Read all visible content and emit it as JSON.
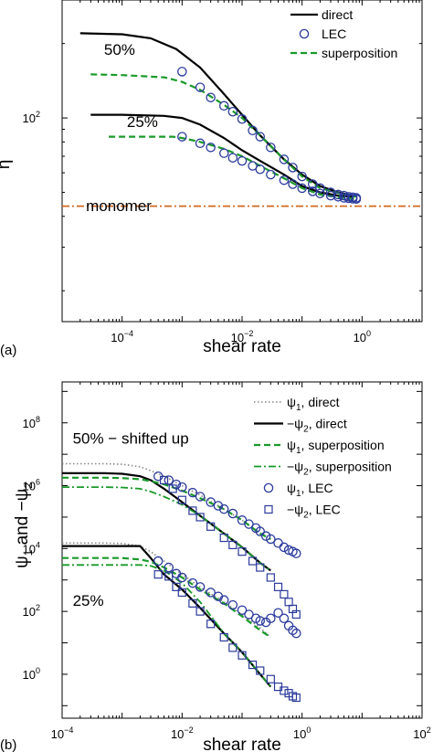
{
  "chart_data": [
    {
      "panel_label": "(a)",
      "type": "line",
      "xscale": "log",
      "yscale": "log",
      "xlim": [
        1e-05,
        10
      ],
      "ylim": [
        15,
        300
      ],
      "xlabel": "shear rate",
      "ylabel": "η",
      "x_ticks": [
        {
          "value": 0.0001,
          "base": "10",
          "exp": "−4"
        },
        {
          "value": 0.01,
          "base": "10",
          "exp": "−2"
        },
        {
          "value": 1,
          "base": "10",
          "exp": "0"
        }
      ],
      "y_ticks": [
        {
          "value": 100,
          "base": "10",
          "exp": "2"
        }
      ],
      "legend": {
        "placement": "top-right",
        "entries": [
          {
            "label": "direct",
            "style": "solid",
            "color": "#000000"
          },
          {
            "label": "LEC",
            "style": "circle",
            "color": "#2b3a9c"
          },
          {
            "label": "superposition",
            "style": "dashed",
            "color": "#1a9a2a"
          }
        ]
      },
      "annotations": [
        {
          "text": "50%",
          "x": 5e-05,
          "y": 180
        },
        {
          "text": "25%",
          "x": 0.00012,
          "y": 92
        },
        {
          "text": "monomer",
          "x": 2.5e-05,
          "y": 42
        }
      ],
      "series": [
        {
          "style": "solid",
          "color": "#000000",
          "x": [
            2e-05,
            0.0001,
            0.0003,
            0.0008,
            0.002,
            0.005,
            0.01,
            0.02,
            0.05,
            0.1,
            0.2,
            0.4,
            0.7
          ],
          "y": [
            220,
            218,
            210,
            190,
            160,
            125,
            103,
            85,
            68,
            59,
            53,
            50,
            48.5
          ]
        },
        {
          "style": "dashed",
          "color": "#1a9a2a",
          "x": [
            3e-05,
            0.0001,
            0.0005,
            0.001,
            0.002,
            0.005,
            0.01,
            0.02,
            0.05,
            0.1,
            0.2,
            0.5,
            0.8
          ],
          "y": [
            150,
            149,
            146,
            140,
            130,
            113,
            100,
            85,
            68,
            58,
            52,
            49,
            48
          ]
        },
        {
          "style": "solid",
          "color": "#000000",
          "x": [
            3e-05,
            0.0001,
            0.0005,
            0.001,
            0.002,
            0.005,
            0.01,
            0.02,
            0.05,
            0.1,
            0.2,
            0.4,
            0.7
          ],
          "y": [
            103,
            103,
            102,
            100,
            94,
            83,
            74,
            67,
            59,
            53,
            50,
            48.5,
            48
          ]
        },
        {
          "style": "dashed",
          "color": "#1a9a2a",
          "x": [
            6e-05,
            0.0003,
            0.0007,
            0.001,
            0.002,
            0.005,
            0.01,
            0.02,
            0.05,
            0.1,
            0.2,
            0.5,
            0.8
          ],
          "y": [
            84,
            84,
            84,
            83,
            80,
            75,
            70,
            64,
            57,
            52,
            49,
            47.5,
            47
          ]
        },
        {
          "style": "dashdot",
          "color": "#d2691e",
          "x": [
            1e-05,
            10
          ],
          "y": [
            44,
            44
          ]
        },
        {
          "style": "circle",
          "color": "#2b3a9c",
          "x": [
            0.001,
            0.002,
            0.003,
            0.005,
            0.007,
            0.01,
            0.015,
            0.02,
            0.03,
            0.05,
            0.07,
            0.1,
            0.15,
            0.2,
            0.3,
            0.4,
            0.5,
            0.6,
            0.7,
            0.8
          ],
          "y": [
            154,
            133,
            121,
            112,
            106,
            99,
            89,
            84,
            76,
            68,
            63,
            58,
            54,
            52,
            50,
            49,
            48.5,
            48,
            47.8,
            47.5
          ]
        },
        {
          "style": "circle",
          "color": "#2b3a9c",
          "x": [
            0.001,
            0.002,
            0.003,
            0.005,
            0.007,
            0.01,
            0.015,
            0.02,
            0.03,
            0.05,
            0.07,
            0.1,
            0.15,
            0.2,
            0.3,
            0.4,
            0.5,
            0.6,
            0.7,
            0.8
          ],
          "y": [
            84,
            79,
            76,
            72,
            69,
            67,
            64,
            62,
            59,
            56,
            54,
            52,
            50.5,
            49.5,
            48.5,
            48,
            47.5,
            47.3,
            47.1,
            47
          ]
        }
      ]
    },
    {
      "panel_label": "(b)",
      "type": "line",
      "xscale": "log",
      "yscale": "log",
      "xlim": [
        0.0001,
        100
      ],
      "ylim": [
        0.04,
        2000000000.0
      ],
      "xlabel": "shear rate",
      "ylabel_parts": [
        "ψ",
        "1",
        " and −ψ",
        "2"
      ],
      "x_ticks": [
        {
          "value": 0.0001,
          "base": "10",
          "exp": "−4"
        },
        {
          "value": 0.01,
          "base": "10",
          "exp": "−2"
        },
        {
          "value": 1,
          "base": "10",
          "exp": "0"
        },
        {
          "value": 100,
          "base": "10",
          "exp": "2"
        }
      ],
      "y_ticks": [
        {
          "value": 1,
          "base": "10",
          "exp": "0"
        },
        {
          "value": 100,
          "base": "10",
          "exp": "2"
        },
        {
          "value": 10000,
          "base": "10",
          "exp": "4"
        },
        {
          "value": 1000000,
          "base": "10",
          "exp": "6"
        },
        {
          "value": 100000000,
          "base": "10",
          "exp": "8"
        }
      ],
      "legend": {
        "placement": "top-right",
        "entries": [
          {
            "parts": [
              "ψ",
              "1",
              ", direct"
            ],
            "style": "dotted",
            "color": "#888888"
          },
          {
            "parts": [
              "−ψ",
              "2",
              ", direct"
            ],
            "style": "solid",
            "color": "#000000"
          },
          {
            "parts": [
              "ψ",
              "1",
              ", superposition"
            ],
            "style": "dashed",
            "color": "#1a9a2a"
          },
          {
            "parts": [
              "−ψ",
              "2",
              ", superposition"
            ],
            "style": "dashdot",
            "color": "#1a9a2a"
          },
          {
            "parts": [
              "ψ",
              "1",
              ", LEC"
            ],
            "style": "circle",
            "color": "#2b3a9c"
          },
          {
            "parts": [
              "−ψ",
              "2",
              ", LEC"
            ],
            "style": "square",
            "color": "#2b3a9c"
          }
        ]
      },
      "annotations": [
        {
          "text": "50% − shifted up",
          "x": 0.00015,
          "y": 22000000.0
        },
        {
          "text": "25%",
          "x": 0.00015,
          "y": 150
        }
      ],
      "series": [
        {
          "style": "dotted",
          "color": "#888888",
          "x": [
            0.0001,
            0.0005,
            0.001,
            0.002,
            0.003,
            0.005,
            0.01,
            0.02,
            0.05,
            0.1,
            0.2,
            0.3
          ],
          "y": [
            5000000.0,
            5000000.0,
            4800000.0,
            4000000.0,
            3000000.0,
            2000000.0,
            1000000.0,
            500000.0,
            180000.0,
            80000.0,
            30000.0,
            20000.0
          ]
        },
        {
          "style": "solid",
          "color": "#000000",
          "x": [
            0.0001,
            0.0005,
            0.001,
            0.002,
            0.003,
            0.005,
            0.01,
            0.02,
            0.05,
            0.1,
            0.2,
            0.3
          ],
          "y": [
            2500000.0,
            2500000.0,
            2400000.0,
            2000000.0,
            1500000.0,
            800000.0,
            300000.0,
            110000.0,
            30000.0,
            11000.0,
            3500.0,
            2000.0
          ]
        },
        {
          "style": "dashed",
          "color": "#1a9a2a",
          "x": [
            0.0001,
            0.0005,
            0.001,
            0.002,
            0.003,
            0.005,
            0.01,
            0.02,
            0.05,
            0.1,
            0.2,
            0.3
          ],
          "y": [
            1800000.0,
            1800000.0,
            1750000.0,
            1600000.0,
            1400000.0,
            1100000.0,
            700000.0,
            400000.0,
            180000.0,
            80000.0,
            30000.0,
            20000.0
          ]
        },
        {
          "style": "dashdot",
          "color": "#1a9a2a",
          "x": [
            0.0001,
            0.0005,
            0.001,
            0.002,
            0.003,
            0.005,
            0.01,
            0.02,
            0.05,
            0.1,
            0.2,
            0.3
          ],
          "y": [
            900000.0,
            900000.0,
            880000.0,
            800000.0,
            650000.0,
            450000.0,
            250000.0,
            110000.0,
            30000.0,
            11000.0,
            3500.0,
            2000.0
          ]
        },
        {
          "style": "dotted",
          "color": "#888888",
          "x": [
            0.0001,
            0.0005,
            0.001,
            0.002,
            0.003,
            0.005,
            0.01,
            0.02,
            0.05,
            0.1,
            0.2,
            0.3
          ],
          "y": [
            15000.0,
            15000.0,
            14500.0,
            12000.0,
            8000.0,
            4000.0,
            1500.0,
            600,
            200,
            80,
            30,
            15
          ]
        },
        {
          "style": "solid",
          "color": "#000000",
          "x": [
            0.0001,
            0.0005,
            0.001,
            0.002,
            0.003,
            0.005,
            0.01,
            0.02,
            0.05,
            0.1,
            0.2,
            0.3
          ],
          "y": [
            12000.0,
            12000.0,
            12000.0,
            12000.0,
            5000.0,
            1500.0,
            500,
            130,
            20,
            5,
            1,
            0.4
          ]
        },
        {
          "style": "dashed",
          "color": "#1a9a2a",
          "x": [
            0.0001,
            0.0005,
            0.001,
            0.002,
            0.003,
            0.005,
            0.01,
            0.02,
            0.05,
            0.1,
            0.2,
            0.3
          ],
          "y": [
            5000.0,
            5000.0,
            5000.0,
            4500.0,
            3800.0,
            2500.0,
            1200.0,
            500,
            180,
            70,
            25,
            15
          ]
        },
        {
          "style": "dashdot",
          "color": "#1a9a2a",
          "x": [
            0.0001,
            0.0005,
            0.001,
            0.002,
            0.003,
            0.005,
            0.01,
            0.02,
            0.05,
            0.1,
            0.2,
            0.3
          ],
          "y": [
            3000.0,
            3000.0,
            3000.0,
            3000.0,
            2800.0,
            2000.0,
            800,
            200,
            20,
            5,
            1,
            0.4
          ]
        },
        {
          "style": "circle",
          "color": "#2b3a9c",
          "x": [
            0.004,
            0.006,
            0.008,
            0.01,
            0.015,
            0.02,
            0.03,
            0.04,
            0.05,
            0.07,
            0.1,
            0.13,
            0.17,
            0.2,
            0.25,
            0.3,
            0.4,
            0.5,
            0.6,
            0.7,
            0.8
          ],
          "y": [
            2000000.0,
            1500000.0,
            1100000.0,
            900000.0,
            600000.0,
            450000.0,
            300000.0,
            230000.0,
            180000.0,
            130000.0,
            80000.0,
            60000.0,
            45000.0,
            35000.0,
            25000.0,
            20000.0,
            15000.0,
            11000.0,
            9000.0,
            8000.0,
            7000.0
          ]
        },
        {
          "style": "square",
          "color": "#2b3a9c",
          "x": [
            0.005,
            0.007,
            0.01,
            0.015,
            0.02,
            0.03,
            0.05,
            0.07,
            0.1,
            0.15,
            0.2,
            0.3,
            0.4,
            0.5,
            0.6,
            0.7,
            0.8
          ],
          "y": [
            1500000.0,
            800000.0,
            350000.0,
            160000.0,
            100000.0,
            50000.0,
            22000.0,
            13000.0,
            8000.0,
            4000.0,
            2500.0,
            1200.0,
            600,
            350,
            200,
            120,
            80
          ]
        },
        {
          "style": "circle",
          "color": "#2b3a9c",
          "x": [
            0.004,
            0.006,
            0.008,
            0.01,
            0.015,
            0.02,
            0.03,
            0.04,
            0.05,
            0.07,
            0.1,
            0.13,
            0.17,
            0.2,
            0.25,
            0.3,
            0.4,
            0.5,
            0.6,
            0.7,
            0.8
          ],
          "y": [
            4000.0,
            2500.0,
            1600.0,
            1200.0,
            800,
            600,
            400,
            300,
            230,
            160,
            110,
            80,
            60,
            50,
            45,
            60,
            90,
            60,
            35,
            25,
            20
          ]
        },
        {
          "style": "square",
          "color": "#2b3a9c",
          "x": [
            0.004,
            0.006,
            0.008,
            0.01,
            0.015,
            0.02,
            0.03,
            0.05,
            0.07,
            0.1,
            0.15,
            0.2,
            0.3,
            0.4,
            0.5,
            0.6,
            0.7,
            0.8
          ],
          "y": [
            1500.0,
            1300.0,
            600,
            400,
            180,
            100,
            40,
            15,
            7,
            4,
            2,
            1.3,
            0.7,
            0.4,
            0.3,
            0.25,
            0.2,
            0.18
          ]
        }
      ]
    }
  ]
}
